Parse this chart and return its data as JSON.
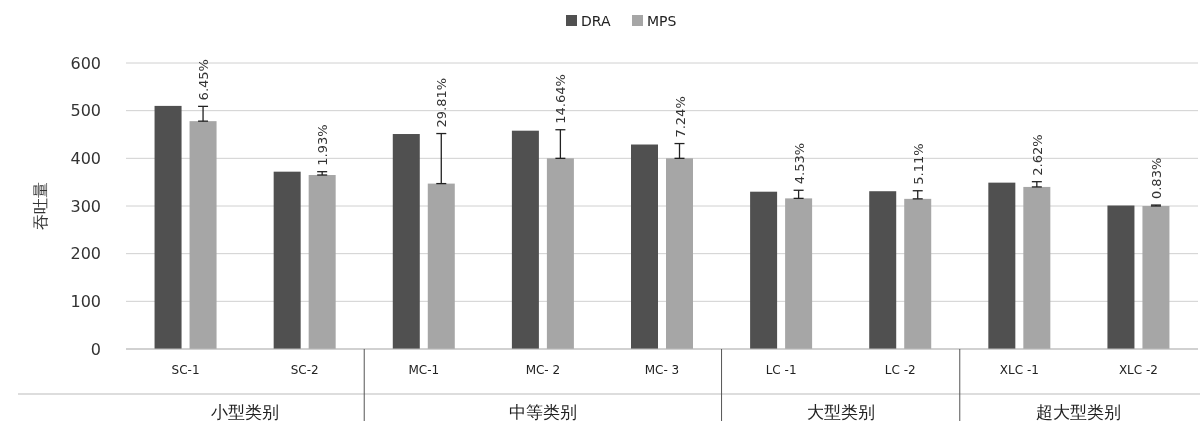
{
  "chart_data": {
    "type": "bar",
    "ylabel": "吞吐量",
    "categories": [
      "SC-1",
      "SC-2",
      "MC-1",
      "MC- 2",
      "MC- 3",
      "LC -1",
      "LC -2",
      "XLC -1",
      "XLC -2"
    ],
    "series": [
      {
        "name": "DRA",
        "color": "#505050",
        "values": [
          510,
          372,
          451,
          458,
          429,
          330,
          331,
          349,
          301
        ]
      },
      {
        "name": "MPS",
        "color": "#a6a6a6",
        "values": [
          478,
          365,
          347,
          400,
          400,
          316,
          315,
          340,
          300
        ],
        "errors": [
          [
            478,
            509
          ],
          [
            365,
            372
          ],
          [
            347,
            452
          ],
          [
            400,
            460
          ],
          [
            400,
            431
          ],
          [
            316,
            333
          ],
          [
            315,
            332
          ],
          [
            340,
            351
          ],
          [
            300,
            302
          ]
        ]
      }
    ],
    "ylim": [
      0,
      600
    ],
    "yticks": [
      0,
      100,
      200,
      300,
      400,
      500,
      600
    ],
    "grid": "y",
    "legend": "top",
    "annotations": [
      "小型类别",
      "中等类别",
      "大型类别",
      "超大型类别",
      {
        "text": "6.45%",
        "x": "SC-1",
        "y": 509
      },
      {
        "text": "1.93%",
        "x": "SC-2",
        "y": 372
      },
      {
        "text": "29.81%",
        "x": "MC-1",
        "y": 452
      },
      {
        "text": "14.64%",
        "x": "MC- 2",
        "y": 460
      },
      {
        "text": "7.24%",
        "x": "MC- 3",
        "y": 431
      },
      {
        "text": "4.53%",
        "x": "LC -1",
        "y": 333
      },
      {
        "text": "5.11%",
        "x": "LC -2",
        "y": 332
      },
      {
        "text": "2.62%",
        "x": "XLC -1",
        "y": 351
      },
      {
        "text": "0.83%",
        "x": "XLC -2",
        "y": 302
      }
    ]
  }
}
